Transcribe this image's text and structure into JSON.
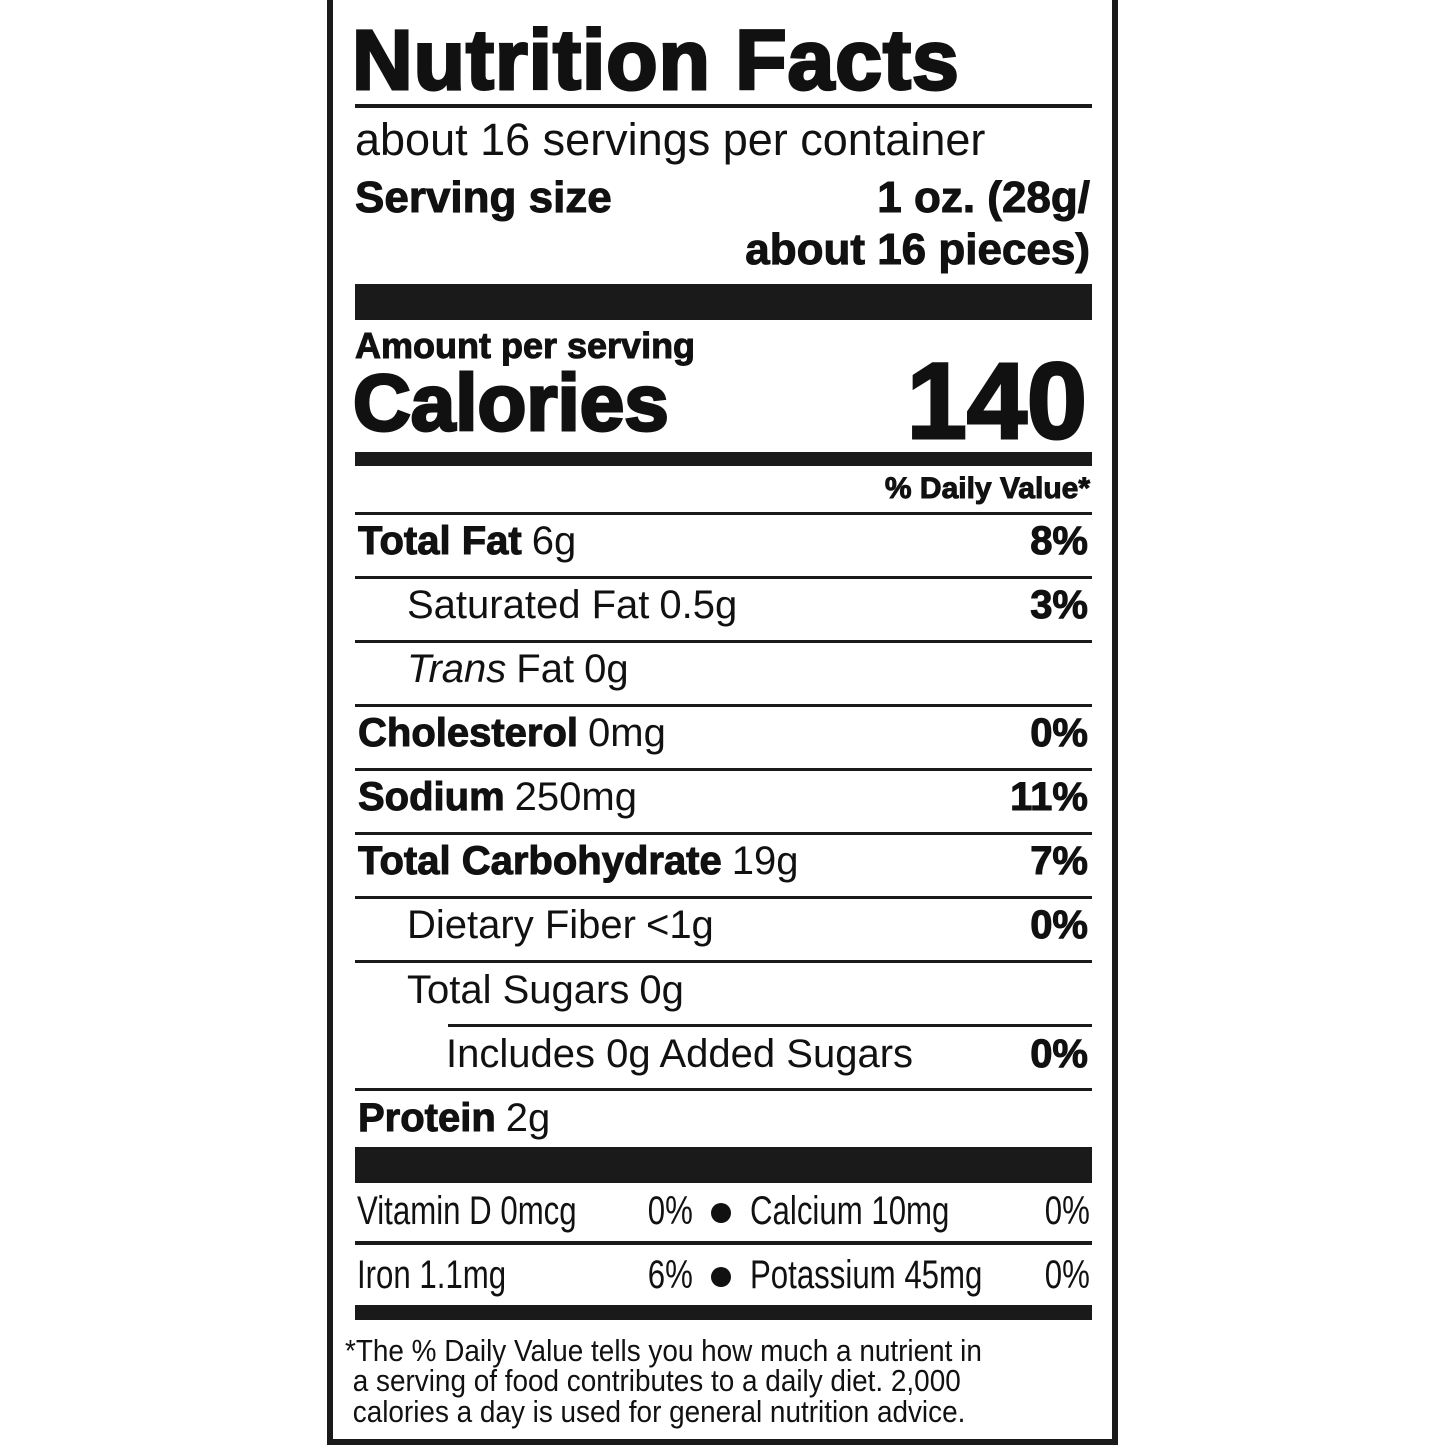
{
  "title": "Nutrition Facts",
  "servings_per_container": "about 16 servings per container",
  "serving_size": {
    "label": "Serving size",
    "value_line1": "1 oz. (28g/",
    "value_line2": "about 16 pieces)"
  },
  "amount_per_serving": "Amount per serving",
  "calories": {
    "label": "Calories",
    "value": "140"
  },
  "daily_value_header": "% Daily Value*",
  "nutrients": [
    {
      "name": "Total Fat",
      "amount": "6g",
      "dv": "8%"
    },
    {
      "name": "Saturated Fat",
      "amount": "0.5g",
      "dv": "3%"
    },
    {
      "name_italic": "Trans",
      "name": "Fat",
      "amount": "0g",
      "dv": ""
    },
    {
      "name": "Cholesterol",
      "amount": "0mg",
      "dv": "0%"
    },
    {
      "name": "Sodium",
      "amount": "250mg",
      "dv": "11%"
    },
    {
      "name": "Total Carbohydrate",
      "amount": "19g",
      "dv": "7%"
    },
    {
      "name": "Dietary Fiber",
      "amount": "<1g",
      "dv": "0%"
    },
    {
      "name": "Total Sugars",
      "amount": "0g",
      "dv": ""
    },
    {
      "name": "Includes 0g Added Sugars",
      "amount": "",
      "dv": "0%"
    },
    {
      "name": "Protein",
      "amount": "2g",
      "dv": ""
    }
  ],
  "micronutrients": [
    {
      "name": "Vitamin D 0mcg",
      "dv": "0%"
    },
    {
      "name": "Calcium 10mg",
      "dv": "0%"
    },
    {
      "name": "Iron 1.1mg",
      "dv": "6%"
    },
    {
      "name": "Potassium 45mg",
      "dv": "0%"
    }
  ],
  "footnote": [
    "*The % Daily Value tells you how much a nutrient in",
    " a serving of food contributes to a daily diet. 2,000",
    " calories a day is used for general nutrition advice."
  ]
}
